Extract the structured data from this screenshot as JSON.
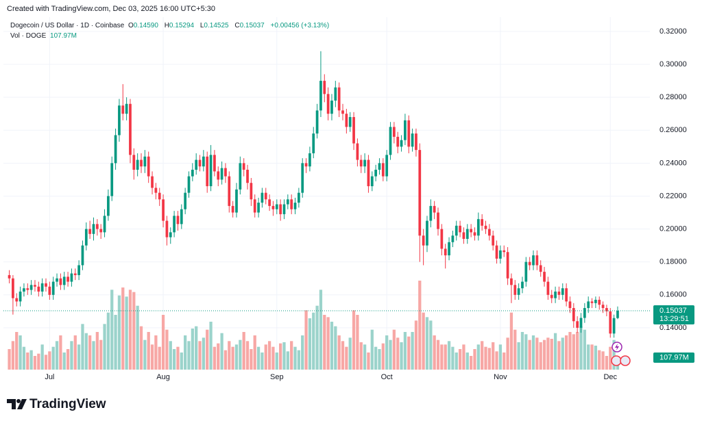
{
  "header": {
    "created": "Created with TradingView.com, Dec 03, 2025 16:00 UTC+5:30"
  },
  "chart_data": {
    "type": "candlestick",
    "symbol": "Dogecoin / US Dollar · 1D · Coinbase",
    "legend": {
      "o_label": "O",
      "o": "0.14590",
      "h_label": "H",
      "h": "0.15294",
      "l_label": "L",
      "l": "0.14525",
      "c_label": "C",
      "c": "0.15037",
      "change": "+0.00456 (+3.13%)"
    },
    "volume_title": "Vol · DOGE",
    "volume_value": "107.97M",
    "up_color": "#089981",
    "down_color": "#f23645",
    "volume_up_color": "#9bd3cb",
    "volume_down_color": "#f7a7a5",
    "grid": true,
    "xlim": [
      -1.6,
      174.8
    ],
    "xticks": [
      {
        "value": 11,
        "label": "Jul"
      },
      {
        "value": 42,
        "label": "Aug"
      },
      {
        "value": 73,
        "label": "Sep"
      },
      {
        "value": 103,
        "label": "Oct"
      },
      {
        "value": 134,
        "label": "Nov"
      },
      {
        "value": 164,
        "label": "Dec"
      }
    ],
    "ylim": [
      0.1146,
      0.3287
    ],
    "yticks": [
      {
        "value": 0.14,
        "label": "0.14000"
      },
      {
        "value": 0.16,
        "label": "0.16000"
      },
      {
        "value": 0.18,
        "label": "0.18000"
      },
      {
        "value": 0.2,
        "label": "0.20000"
      },
      {
        "value": 0.22,
        "label": "0.22000"
      },
      {
        "value": 0.24,
        "label": "0.24000"
      },
      {
        "value": 0.26,
        "label": "0.26000"
      },
      {
        "value": 0.28,
        "label": "0.28000"
      },
      {
        "value": 0.3,
        "label": "0.30000"
      },
      {
        "value": 0.32,
        "label": "0.32000"
      }
    ],
    "volume_lim": [
      0,
      3090
    ],
    "last_price_label": "0.15037",
    "countdown": "13:29:51",
    "last_volume_label": "107.97M",
    "open": [
      0.172,
      0.17,
      0.158,
      0.156,
      0.162,
      0.164,
      0.163,
      0.166,
      0.165,
      0.162,
      0.167,
      0.165,
      0.16,
      0.168,
      0.17,
      0.166,
      0.171,
      0.168,
      0.173,
      0.172,
      0.178,
      0.19,
      0.2,
      0.197,
      0.203,
      0.2,
      0.198,
      0.208,
      0.22,
      0.24,
      0.257,
      0.275,
      0.27,
      0.276,
      0.245,
      0.236,
      0.242,
      0.238,
      0.244,
      0.232,
      0.225,
      0.222,
      0.218,
      0.205,
      0.195,
      0.198,
      0.208,
      0.203,
      0.212,
      0.222,
      0.232,
      0.236,
      0.242,
      0.238,
      0.244,
      0.226,
      0.245,
      0.235,
      0.23,
      0.237,
      0.232,
      0.214,
      0.21,
      0.224,
      0.24,
      0.236,
      0.228,
      0.218,
      0.21,
      0.216,
      0.222,
      0.218,
      0.214,
      0.212,
      0.215,
      0.209,
      0.215,
      0.218,
      0.212,
      0.216,
      0.222,
      0.24,
      0.238,
      0.246,
      0.258,
      0.272,
      0.29,
      0.282,
      0.27,
      0.278,
      0.286,
      0.272,
      0.27,
      0.262,
      0.268,
      0.252,
      0.242,
      0.238,
      0.242,
      0.226,
      0.232,
      0.236,
      0.24,
      0.232,
      0.245,
      0.262,
      0.256,
      0.25,
      0.254,
      0.266,
      0.25,
      0.258,
      0.248,
      0.196,
      0.19,
      0.205,
      0.214,
      0.21,
      0.2,
      0.188,
      0.184,
      0.192,
      0.196,
      0.202,
      0.198,
      0.194,
      0.2,
      0.198,
      0.196,
      0.206,
      0.202,
      0.2,
      0.196,
      0.19,
      0.182,
      0.187,
      0.186,
      0.17,
      0.166,
      0.16,
      0.164,
      0.168,
      0.18,
      0.178,
      0.184,
      0.178,
      0.174,
      0.168,
      0.16,
      0.158,
      0.162,
      0.16,
      0.164,
      0.156,
      0.152,
      0.144,
      0.14,
      0.146,
      0.152,
      0.156,
      0.155,
      0.157,
      0.154,
      0.152,
      0.15,
      0.1365,
      0.1459
    ],
    "high": [
      0.175,
      0.172,
      0.161,
      0.165,
      0.167,
      0.167,
      0.169,
      0.169,
      0.168,
      0.17,
      0.17,
      0.168,
      0.171,
      0.173,
      0.173,
      0.174,
      0.174,
      0.176,
      0.176,
      0.181,
      0.193,
      0.204,
      0.205,
      0.207,
      0.206,
      0.203,
      0.212,
      0.224,
      0.244,
      0.261,
      0.279,
      0.288,
      0.28,
      0.279,
      0.249,
      0.246,
      0.246,
      0.248,
      0.247,
      0.235,
      0.228,
      0.225,
      0.221,
      0.208,
      0.201,
      0.211,
      0.211,
      0.215,
      0.225,
      0.235,
      0.24,
      0.246,
      0.245,
      0.248,
      0.247,
      0.251,
      0.248,
      0.238,
      0.241,
      0.24,
      0.235,
      0.217,
      0.228,
      0.244,
      0.243,
      0.239,
      0.231,
      0.221,
      0.219,
      0.225,
      0.225,
      0.221,
      0.217,
      0.218,
      0.218,
      0.218,
      0.221,
      0.221,
      0.219,
      0.225,
      0.243,
      0.243,
      0.25,
      0.262,
      0.276,
      0.308,
      0.294,
      0.286,
      0.282,
      0.29,
      0.289,
      0.276,
      0.273,
      0.271,
      0.271,
      0.255,
      0.245,
      0.246,
      0.245,
      0.235,
      0.239,
      0.243,
      0.243,
      0.248,
      0.265,
      0.265,
      0.259,
      0.257,
      0.27,
      0.269,
      0.261,
      0.261,
      0.252,
      0.2,
      0.208,
      0.218,
      0.217,
      0.213,
      0.203,
      0.191,
      0.195,
      0.199,
      0.205,
      0.205,
      0.201,
      0.203,
      0.203,
      0.201,
      0.21,
      0.209,
      0.205,
      0.203,
      0.199,
      0.193,
      0.19,
      0.19,
      0.189,
      0.173,
      0.169,
      0.167,
      0.171,
      0.183,
      0.183,
      0.187,
      0.187,
      0.181,
      0.177,
      0.171,
      0.163,
      0.165,
      0.165,
      0.167,
      0.167,
      0.159,
      0.155,
      0.147,
      0.149,
      0.155,
      0.159,
      0.158,
      0.159,
      0.159,
      0.156,
      0.154,
      0.152,
      0.148,
      0.15294
    ],
    "low": [
      0.167,
      0.148,
      0.153,
      0.153,
      0.159,
      0.16,
      0.16,
      0.162,
      0.159,
      0.159,
      0.162,
      0.157,
      0.157,
      0.165,
      0.163,
      0.163,
      0.165,
      0.165,
      0.169,
      0.169,
      0.175,
      0.187,
      0.194,
      0.193,
      0.196,
      0.194,
      0.195,
      0.205,
      0.217,
      0.236,
      0.253,
      0.266,
      0.266,
      0.24,
      0.23,
      0.232,
      0.234,
      0.234,
      0.228,
      0.221,
      0.218,
      0.214,
      0.201,
      0.19,
      0.191,
      0.195,
      0.199,
      0.2,
      0.209,
      0.219,
      0.229,
      0.233,
      0.235,
      0.235,
      0.222,
      0.223,
      0.232,
      0.226,
      0.227,
      0.228,
      0.21,
      0.207,
      0.207,
      0.221,
      0.232,
      0.224,
      0.214,
      0.207,
      0.207,
      0.213,
      0.215,
      0.211,
      0.208,
      0.209,
      0.205,
      0.206,
      0.212,
      0.209,
      0.209,
      0.213,
      0.219,
      0.234,
      0.235,
      0.243,
      0.255,
      0.268,
      0.277,
      0.266,
      0.266,
      0.274,
      0.268,
      0.266,
      0.258,
      0.259,
      0.248,
      0.238,
      0.234,
      0.234,
      0.222,
      0.223,
      0.229,
      0.233,
      0.229,
      0.229,
      0.242,
      0.252,
      0.246,
      0.247,
      0.251,
      0.246,
      0.247,
      0.244,
      0.18,
      0.178,
      0.186,
      0.201,
      0.206,
      0.196,
      0.184,
      0.176,
      0.181,
      0.189,
      0.193,
      0.195,
      0.191,
      0.191,
      0.195,
      0.193,
      0.193,
      0.199,
      0.197,
      0.193,
      0.187,
      0.179,
      0.179,
      0.183,
      0.166,
      0.155,
      0.157,
      0.157,
      0.161,
      0.165,
      0.175,
      0.175,
      0.175,
      0.171,
      0.165,
      0.157,
      0.155,
      0.155,
      0.157,
      0.157,
      0.153,
      0.149,
      0.14,
      0.137,
      0.137,
      0.143,
      0.149,
      0.152,
      0.152,
      0.151,
      0.149,
      0.147,
      0.134,
      0.134,
      0.14525
    ],
    "close": [
      0.17,
      0.158,
      0.156,
      0.162,
      0.164,
      0.163,
      0.166,
      0.165,
      0.162,
      0.167,
      0.165,
      0.16,
      0.168,
      0.17,
      0.166,
      0.171,
      0.168,
      0.173,
      0.172,
      0.178,
      0.19,
      0.2,
      0.197,
      0.203,
      0.2,
      0.198,
      0.208,
      0.22,
      0.24,
      0.257,
      0.275,
      0.27,
      0.276,
      0.245,
      0.236,
      0.242,
      0.238,
      0.244,
      0.232,
      0.225,
      0.222,
      0.218,
      0.205,
      0.195,
      0.198,
      0.208,
      0.203,
      0.212,
      0.222,
      0.232,
      0.236,
      0.242,
      0.238,
      0.244,
      0.226,
      0.245,
      0.235,
      0.23,
      0.237,
      0.232,
      0.214,
      0.21,
      0.224,
      0.24,
      0.236,
      0.228,
      0.218,
      0.21,
      0.216,
      0.222,
      0.218,
      0.214,
      0.212,
      0.215,
      0.209,
      0.215,
      0.218,
      0.212,
      0.216,
      0.222,
      0.24,
      0.238,
      0.246,
      0.258,
      0.272,
      0.29,
      0.282,
      0.27,
      0.278,
      0.286,
      0.272,
      0.27,
      0.262,
      0.268,
      0.252,
      0.242,
      0.238,
      0.242,
      0.226,
      0.232,
      0.236,
      0.24,
      0.232,
      0.245,
      0.262,
      0.256,
      0.25,
      0.254,
      0.266,
      0.25,
      0.258,
      0.248,
      0.196,
      0.19,
      0.205,
      0.214,
      0.21,
      0.2,
      0.188,
      0.184,
      0.192,
      0.196,
      0.202,
      0.198,
      0.194,
      0.2,
      0.198,
      0.196,
      0.206,
      0.202,
      0.2,
      0.196,
      0.19,
      0.182,
      0.187,
      0.186,
      0.17,
      0.166,
      0.16,
      0.164,
      0.168,
      0.18,
      0.178,
      0.184,
      0.178,
      0.174,
      0.168,
      0.16,
      0.158,
      0.162,
      0.16,
      0.164,
      0.156,
      0.152,
      0.144,
      0.14,
      0.146,
      0.152,
      0.156,
      0.155,
      0.157,
      0.154,
      0.152,
      0.15,
      0.1365,
      0.1459,
      0.15037
    ],
    "volume": [
      180,
      250,
      330,
      300,
      200,
      150,
      170,
      120,
      140,
      220,
      130,
      160,
      200,
      250,
      300,
      150,
      180,
      250,
      300,
      220,
      400,
      320,
      300,
      250,
      330,
      260,
      400,
      500,
      700,
      480,
      650,
      720,
      640,
      700,
      680,
      560,
      380,
      260,
      330,
      220,
      300,
      200,
      480,
      350,
      250,
      180,
      200,
      150,
      300,
      250,
      360,
      380,
      250,
      280,
      350,
      420,
      200,
      230,
      320,
      170,
      250,
      200,
      220,
      260,
      330,
      250,
      180,
      300,
      200,
      150,
      220,
      250,
      200,
      150,
      230,
      240,
      160,
      250,
      200,
      170,
      300,
      520,
      450,
      500,
      560,
      700,
      480,
      460,
      420,
      380,
      300,
      250,
      200,
      280,
      520,
      480,
      240,
      220,
      150,
      350,
      200,
      180,
      230,
      300,
      260,
      350,
      280,
      240,
      330,
      290,
      330,
      430,
      780,
      500,
      460,
      430,
      300,
      260,
      220,
      220,
      250,
      200,
      150,
      180,
      220,
      150,
      120,
      180,
      220,
      250,
      200,
      190,
      240,
      160,
      220,
      150,
      280,
      500,
      350,
      240,
      330,
      310,
      260,
      300,
      280,
      240,
      260,
      280,
      270,
      320,
      250,
      280,
      300,
      330,
      310,
      330,
      380,
      350,
      220,
      220,
      210,
      170,
      160,
      120,
      200,
      260,
      107.97
    ]
  },
  "footer": {
    "brand": "TradingView"
  }
}
